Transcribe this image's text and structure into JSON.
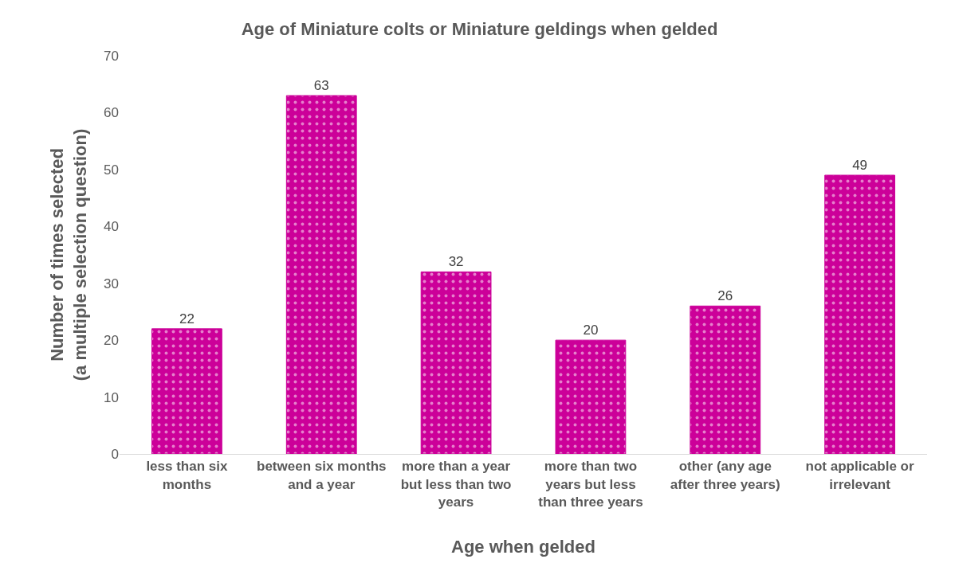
{
  "chart_data": {
    "type": "bar",
    "title": "Age of Miniature colts or Miniature geldings when gelded",
    "xlabel": "Age when gelded",
    "ylabel": "Number of times selected\n(a multiple selection question)",
    "categories": [
      "less than six months",
      "between six months and a year",
      "more than a year but less than two years",
      "more than two years but less than three years",
      "other (any age after three years)",
      "not applicable or irrelevant"
    ],
    "values": [
      22,
      63,
      32,
      20,
      26,
      49
    ],
    "color": "#cc0099",
    "ylim": [
      0,
      70
    ],
    "yticks": [
      0,
      10,
      20,
      30,
      40,
      50,
      60,
      70
    ],
    "data_labels": true
  }
}
